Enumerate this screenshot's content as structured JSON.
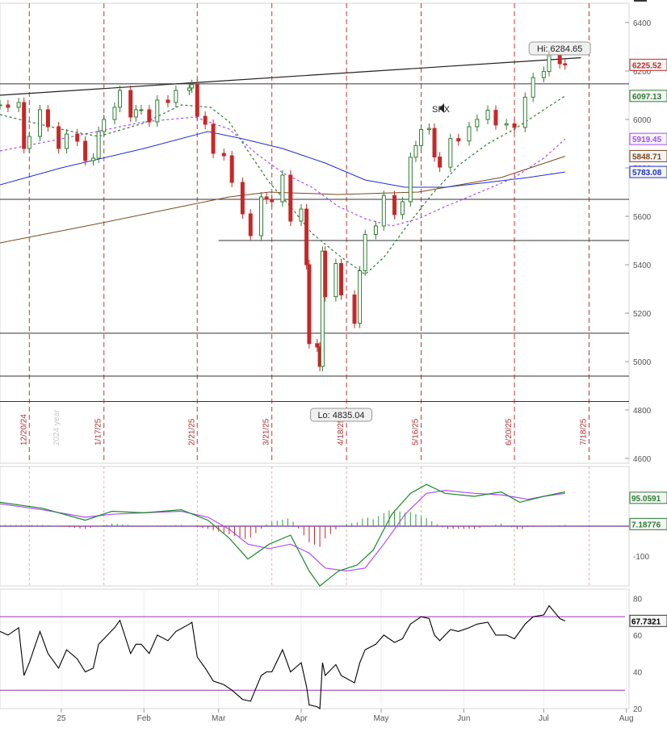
{
  "chart_data": [
    {
      "type": "line",
      "series_label": "SPX",
      "y_axis": {
        "ylim": [
          4580,
          6480
        ],
        "ticks": [
          "6400",
          "6200",
          "6000",
          "5800",
          "5600",
          "5400",
          "5200",
          "5000",
          "4800",
          "4600"
        ]
      },
      "x_axis": {
        "date_range": [
          "2024-12-09",
          "2025-08-02"
        ],
        "month_ticks": [
          "25",
          "Feb",
          "Mar",
          "Apr",
          "May",
          "Jun",
          "Jul",
          "Aug"
        ]
      },
      "cycle_lines": [
        "12/20/24",
        "1/17/25",
        "2/21/25",
        "3/21/25",
        "4/18/25",
        "5/16/25",
        "6/20/25",
        "7/18/25"
      ],
      "year_marker": "2024 year",
      "annotations": {
        "high": "Hi: 6284.65",
        "low": "Lo: 4835.04"
      },
      "horizontal_levels": [
        6147,
        5670,
        5500,
        5117,
        4940,
        4835
      ],
      "trendline": {
        "start": [
          "2024-12-09",
          6100
        ],
        "end": [
          "2025-07-15",
          6255
        ]
      },
      "last_values": [
        {
          "label": "6225.52",
          "color": "#c62828"
        },
        {
          "label": "6097.13",
          "color": "#2e7d32"
        },
        {
          "label": "5919.45",
          "color": "#a64dff"
        },
        {
          "label": "5848.71",
          "color": "#7b4a1e"
        },
        {
          "label": "5783.08",
          "color": "#1e2fd6"
        }
      ],
      "price_series": [
        [
          "2024-12-09",
          6060
        ],
        [
          "2024-12-12",
          6050
        ],
        [
          "2024-12-16",
          6070
        ],
        [
          "2024-12-18",
          5880
        ],
        [
          "2024-12-20",
          5930
        ],
        [
          "2024-12-24",
          6040
        ],
        [
          "2024-12-27",
          5970
        ],
        [
          "2024-12-31",
          5880
        ],
        [
          "2025-01-03",
          5940
        ],
        [
          "2025-01-07",
          5910
        ],
        [
          "2025-01-10",
          5830
        ],
        [
          "2025-01-13",
          5840
        ],
        [
          "2025-01-15",
          5950
        ],
        [
          "2025-01-17",
          6000
        ],
        [
          "2025-01-21",
          6050
        ],
        [
          "2025-01-23",
          6120
        ],
        [
          "2025-01-27",
          6010
        ],
        [
          "2025-01-29",
          6040
        ],
        [
          "2025-01-31",
          6040
        ],
        [
          "2025-02-03",
          5990
        ],
        [
          "2025-02-06",
          6080
        ],
        [
          "2025-02-10",
          6070
        ],
        [
          "2025-02-13",
          6120
        ],
        [
          "2025-02-18",
          6130
        ],
        [
          "2025-02-19",
          6144
        ],
        [
          "2025-02-21",
          6013
        ],
        [
          "2025-02-24",
          5980
        ],
        [
          "2025-02-27",
          5860
        ],
        [
          "2025-03-03",
          5850
        ],
        [
          "2025-03-06",
          5740
        ],
        [
          "2025-03-10",
          5610
        ],
        [
          "2025-03-13",
          5520
        ],
        [
          "2025-03-17",
          5680
        ],
        [
          "2025-03-19",
          5670
        ],
        [
          "2025-03-21",
          5660
        ],
        [
          "2025-03-25",
          5770
        ],
        [
          "2025-03-28",
          5580
        ],
        [
          "2025-04-01",
          5630
        ],
        [
          "2025-04-03",
          5400
        ],
        [
          "2025-04-04",
          5074
        ],
        [
          "2025-04-07",
          5060
        ],
        [
          "2025-04-08",
          4980
        ],
        [
          "2025-04-09",
          5456
        ],
        [
          "2025-04-10",
          5268
        ],
        [
          "2025-04-14",
          5405
        ],
        [
          "2025-04-16",
          5275
        ],
        [
          "2025-04-21",
          5158
        ],
        [
          "2025-04-23",
          5375
        ],
        [
          "2025-04-25",
          5525
        ],
        [
          "2025-04-29",
          5560
        ],
        [
          "2025-05-02",
          5686
        ],
        [
          "2025-05-06",
          5607
        ],
        [
          "2025-05-09",
          5660
        ],
        [
          "2025-05-12",
          5844
        ],
        [
          "2025-05-14",
          5892
        ],
        [
          "2025-05-16",
          5958
        ],
        [
          "2025-05-19",
          5963
        ],
        [
          "2025-05-21",
          5845
        ],
        [
          "2025-05-23",
          5803
        ],
        [
          "2025-05-27",
          5921
        ],
        [
          "2025-05-30",
          5911
        ],
        [
          "2025-06-03",
          5970
        ],
        [
          "2025-06-06",
          6000
        ],
        [
          "2025-06-10",
          6038
        ],
        [
          "2025-06-13",
          5977
        ],
        [
          "2025-06-17",
          5982
        ],
        [
          "2025-06-20",
          5967
        ],
        [
          "2025-06-24",
          6092
        ],
        [
          "2025-06-27",
          6173
        ],
        [
          "2025-07-01",
          6198
        ],
        [
          "2025-07-03",
          6279
        ],
        [
          "2025-07-07",
          6230
        ],
        [
          "2025-07-09",
          6225
        ]
      ],
      "ma_green": [
        [
          "2024-12-09",
          6020
        ],
        [
          "2024-12-20",
          5990
        ],
        [
          "2025-01-05",
          5950
        ],
        [
          "2025-01-15",
          5930
        ],
        [
          "2025-02-01",
          5985
        ],
        [
          "2025-02-15",
          6060
        ],
        [
          "2025-02-26",
          6050
        ],
        [
          "2025-03-05",
          5990
        ],
        [
          "2025-03-12",
          5870
        ],
        [
          "2025-03-20",
          5740
        ],
        [
          "2025-03-28",
          5640
        ],
        [
          "2025-04-05",
          5530
        ],
        [
          "2025-04-15",
          5440
        ],
        [
          "2025-04-25",
          5360
        ],
        [
          "2025-05-02",
          5430
        ],
        [
          "2025-05-10",
          5550
        ],
        [
          "2025-05-20",
          5690
        ],
        [
          "2025-05-30",
          5810
        ],
        [
          "2025-06-10",
          5900
        ],
        [
          "2025-06-20",
          5960
        ],
        [
          "2025-07-01",
          6040
        ],
        [
          "2025-07-09",
          6097
        ]
      ],
      "ma_purple": [
        [
          "2024-12-09",
          5870
        ],
        [
          "2025-01-01",
          5920
        ],
        [
          "2025-02-01",
          5990
        ],
        [
          "2025-02-20",
          6010
        ],
        [
          "2025-03-05",
          5960
        ],
        [
          "2025-03-15",
          5860
        ],
        [
          "2025-03-25",
          5780
        ],
        [
          "2025-04-05",
          5720
        ],
        [
          "2025-04-15",
          5640
        ],
        [
          "2025-04-25",
          5590
        ],
        [
          "2025-05-05",
          5560
        ],
        [
          "2025-05-15",
          5590
        ],
        [
          "2025-05-25",
          5640
        ],
        [
          "2025-06-05",
          5690
        ],
        [
          "2025-06-20",
          5760
        ],
        [
          "2025-07-01",
          5840
        ],
        [
          "2025-07-09",
          5919
        ]
      ],
      "ma_blue": [
        [
          "2024-12-09",
          5730
        ],
        [
          "2025-01-01",
          5800
        ],
        [
          "2025-02-01",
          5880
        ],
        [
          "2025-02-25",
          5950
        ],
        [
          "2025-03-10",
          5920
        ],
        [
          "2025-03-25",
          5880
        ],
        [
          "2025-04-10",
          5820
        ],
        [
          "2025-04-25",
          5750
        ],
        [
          "2025-05-10",
          5720
        ],
        [
          "2025-05-25",
          5720
        ],
        [
          "2025-06-10",
          5740
        ],
        [
          "2025-06-25",
          5760
        ],
        [
          "2025-07-09",
          5783
        ]
      ],
      "ma_brown": [
        [
          "2024-12-09",
          5490
        ],
        [
          "2025-01-15",
          5570
        ],
        [
          "2025-02-15",
          5640
        ],
        [
          "2025-03-05",
          5680
        ],
        [
          "2025-03-20",
          5700
        ],
        [
          "2025-04-15",
          5690
        ],
        [
          "2025-05-15",
          5700
        ],
        [
          "2025-06-15",
          5760
        ],
        [
          "2025-07-09",
          5848
        ]
      ]
    },
    {
      "type": "line",
      "panel": "oscillator",
      "ylim": [
        -200,
        200
      ],
      "ticks": [
        "-100"
      ],
      "last_values": [
        {
          "label": "95.0591",
          "color": "#2e7d32"
        },
        {
          "label": "7.18776",
          "color": "#2e7d32"
        }
      ],
      "fast": [
        [
          "2024-12-09",
          80
        ],
        [
          "2024-12-25",
          60
        ],
        [
          "2025-01-10",
          20
        ],
        [
          "2025-01-20",
          50
        ],
        [
          "2025-02-01",
          45
        ],
        [
          "2025-02-15",
          55
        ],
        [
          "2025-02-25",
          20
        ],
        [
          "2025-03-05",
          -40
        ],
        [
          "2025-03-12",
          -110
        ],
        [
          "2025-03-20",
          -60
        ],
        [
          "2025-03-28",
          -30
        ],
        [
          "2025-04-04",
          -150
        ],
        [
          "2025-04-08",
          -200
        ],
        [
          "2025-04-15",
          -150
        ],
        [
          "2025-04-22",
          -130
        ],
        [
          "2025-04-28",
          -80
        ],
        [
          "2025-05-05",
          40
        ],
        [
          "2025-05-12",
          110
        ],
        [
          "2025-05-18",
          140
        ],
        [
          "2025-05-25",
          110
        ],
        [
          "2025-06-05",
          100
        ],
        [
          "2025-06-15",
          115
        ],
        [
          "2025-06-22",
          80
        ],
        [
          "2025-07-01",
          100
        ],
        [
          "2025-07-09",
          115
        ]
      ],
      "slow": [
        [
          "2024-12-09",
          75
        ],
        [
          "2024-12-25",
          55
        ],
        [
          "2025-01-10",
          30
        ],
        [
          "2025-01-20",
          40
        ],
        [
          "2025-02-01",
          45
        ],
        [
          "2025-02-15",
          50
        ],
        [
          "2025-02-25",
          30
        ],
        [
          "2025-03-05",
          -10
        ],
        [
          "2025-03-12",
          -60
        ],
        [
          "2025-03-20",
          -75
        ],
        [
          "2025-03-28",
          -60
        ],
        [
          "2025-04-04",
          -90
        ],
        [
          "2025-04-10",
          -140
        ],
        [
          "2025-04-18",
          -150
        ],
        [
          "2025-04-25",
          -140
        ],
        [
          "2025-05-02",
          -60
        ],
        [
          "2025-05-10",
          40
        ],
        [
          "2025-05-18",
          110
        ],
        [
          "2025-05-25",
          120
        ],
        [
          "2025-06-05",
          110
        ],
        [
          "2025-06-15",
          105
        ],
        [
          "2025-06-25",
          90
        ],
        [
          "2025-07-01",
          100
        ],
        [
          "2025-07-09",
          110
        ]
      ]
    },
    {
      "type": "line",
      "panel": "rsi",
      "ylim": [
        20,
        85
      ],
      "ticks": [
        "80",
        "60",
        "40",
        "20"
      ],
      "levels": [
        70,
        30
      ],
      "last_values": [
        {
          "label": "67.7321",
          "color": "#000000"
        }
      ],
      "values": [
        [
          "2024-12-09",
          62
        ],
        [
          "2024-12-12",
          60
        ],
        [
          "2024-12-16",
          64
        ],
        [
          "2024-12-18",
          38
        ],
        [
          "2024-12-20",
          45
        ],
        [
          "2024-12-24",
          62
        ],
        [
          "2024-12-27",
          50
        ],
        [
          "2024-12-31",
          42
        ],
        [
          "2025-01-03",
          52
        ],
        [
          "2025-01-07",
          47
        ],
        [
          "2025-01-10",
          40
        ],
        [
          "2025-01-13",
          42
        ],
        [
          "2025-01-15",
          55
        ],
        [
          "2025-01-17",
          58
        ],
        [
          "2025-01-21",
          64
        ],
        [
          "2025-01-23",
          68
        ],
        [
          "2025-01-27",
          50
        ],
        [
          "2025-01-29",
          55
        ],
        [
          "2025-01-31",
          55
        ],
        [
          "2025-02-03",
          50
        ],
        [
          "2025-02-06",
          60
        ],
        [
          "2025-02-10",
          57
        ],
        [
          "2025-02-13",
          62
        ],
        [
          "2025-02-18",
          66
        ],
        [
          "2025-02-19",
          67
        ],
        [
          "2025-02-21",
          48
        ],
        [
          "2025-02-24",
          42
        ],
        [
          "2025-02-27",
          35
        ],
        [
          "2025-03-03",
          33
        ],
        [
          "2025-03-06",
          30
        ],
        [
          "2025-03-10",
          25
        ],
        [
          "2025-03-13",
          24
        ],
        [
          "2025-03-17",
          38
        ],
        [
          "2025-03-19",
          40
        ],
        [
          "2025-03-21",
          40
        ],
        [
          "2025-03-25",
          52
        ],
        [
          "2025-03-28",
          40
        ],
        [
          "2025-04-01",
          45
        ],
        [
          "2025-04-03",
          32
        ],
        [
          "2025-04-04",
          22
        ],
        [
          "2025-04-07",
          21
        ],
        [
          "2025-04-08",
          20
        ],
        [
          "2025-04-09",
          45
        ],
        [
          "2025-04-10",
          38
        ],
        [
          "2025-04-14",
          44
        ],
        [
          "2025-04-16",
          38
        ],
        [
          "2025-04-21",
          34
        ],
        [
          "2025-04-23",
          45
        ],
        [
          "2025-04-25",
          52
        ],
        [
          "2025-04-29",
          55
        ],
        [
          "2025-05-02",
          60
        ],
        [
          "2025-05-06",
          56
        ],
        [
          "2025-05-09",
          58
        ],
        [
          "2025-05-12",
          66
        ],
        [
          "2025-05-14",
          68
        ],
        [
          "2025-05-16",
          70
        ],
        [
          "2025-05-19",
          69
        ],
        [
          "2025-05-21",
          60
        ],
        [
          "2025-05-23",
          57
        ],
        [
          "2025-05-27",
          63
        ],
        [
          "2025-05-30",
          62
        ],
        [
          "2025-06-03",
          64
        ],
        [
          "2025-06-06",
          66
        ],
        [
          "2025-06-10",
          67
        ],
        [
          "2025-06-13",
          60
        ],
        [
          "2025-06-17",
          60
        ],
        [
          "2025-06-20",
          58
        ],
        [
          "2025-06-24",
          66
        ],
        [
          "2025-06-27",
          70
        ],
        [
          "2025-07-01",
          71
        ],
        [
          "2025-07-03",
          76
        ],
        [
          "2025-07-07",
          69
        ],
        [
          "2025-07-09",
          67.7
        ]
      ]
    }
  ]
}
